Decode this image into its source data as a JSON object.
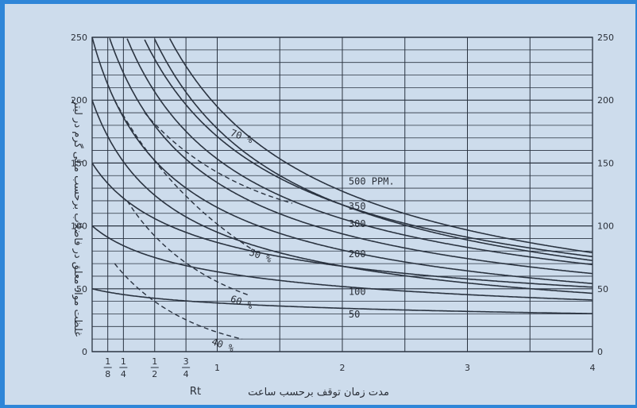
{
  "chart_data": {
    "type": "line",
    "x_ticks": [
      {
        "value": 0.125,
        "label": "1/8"
      },
      {
        "value": 0.25,
        "label": "1/4"
      },
      {
        "value": 0.5,
        "label": "1/2"
      },
      {
        "value": 0.75,
        "label": "3/4"
      },
      {
        "value": 1,
        "label": "1"
      },
      {
        "value": 2,
        "label": "2"
      },
      {
        "value": 3,
        "label": "3"
      },
      {
        "value": 4,
        "label": "4"
      }
    ],
    "y_ticks_left": [
      "0",
      "50",
      "100",
      "150",
      "200",
      "250"
    ],
    "y_ticks_right": [
      "0",
      "50",
      "100",
      "150",
      "200",
      "250"
    ],
    "xlim": [
      0,
      4
    ],
    "ylim": [
      0,
      250
    ],
    "xlabel": "مدت زمان توقف برحسب ساعت",
    "xlabel_symbol": "Rt",
    "ylabel": "غلظت مواد معلق در فاضلاب برحسب میلی گرم در لیتر",
    "grid": true,
    "series": [
      {
        "name": "500 PPM.",
        "label_at": [
          2.05,
          133
        ],
        "y0": 500,
        "b": 0.81
      },
      {
        "name": "350",
        "label_at": [
          2.05,
          113
        ],
        "y0": 350,
        "b": 0.71
      },
      {
        "name": "300",
        "label_at": [
          2.05,
          99
        ],
        "y0": 300,
        "b": 0.69
      },
      {
        "name": "200",
        "label_at": [
          2.05,
          75
        ],
        "y0": 200,
        "b": 0.64
      },
      {
        "name": "100",
        "label_at": [
          2.05,
          45
        ],
        "y0": 100,
        "b": 0.39
      },
      {
        "name": "50",
        "label_at": [
          2.05,
          27
        ],
        "y0": 50,
        "b": 0.22
      }
    ],
    "unlabeled_series": [
      {
        "y0": 450,
        "b": 0.8
      },
      {
        "y0": 400,
        "b": 0.73
      },
      {
        "y0": 250,
        "b": 0.67
      },
      {
        "y0": 150,
        "b": 0.47
      }
    ],
    "removal_lines": [
      {
        "label": "70 %",
        "label_at": [
          1.1,
          172
        ],
        "start": [
          0.42,
          190
        ],
        "end": [
          1.6,
          118
        ]
      },
      {
        "label": "50 %",
        "label_at": [
          1.25,
          77
        ],
        "start": [
          0.18,
          200
        ],
        "end": [
          1.3,
          80
        ]
      },
      {
        "label": "60 %",
        "label_at": [
          1.1,
          40
        ],
        "start": [
          0.28,
          120
        ],
        "end": [
          1.25,
          45
        ]
      },
      {
        "label": "40 %",
        "label_at": [
          0.95,
          6
        ],
        "start": [
          0.18,
          70
        ],
        "end": [
          1.2,
          10
        ]
      }
    ]
  }
}
